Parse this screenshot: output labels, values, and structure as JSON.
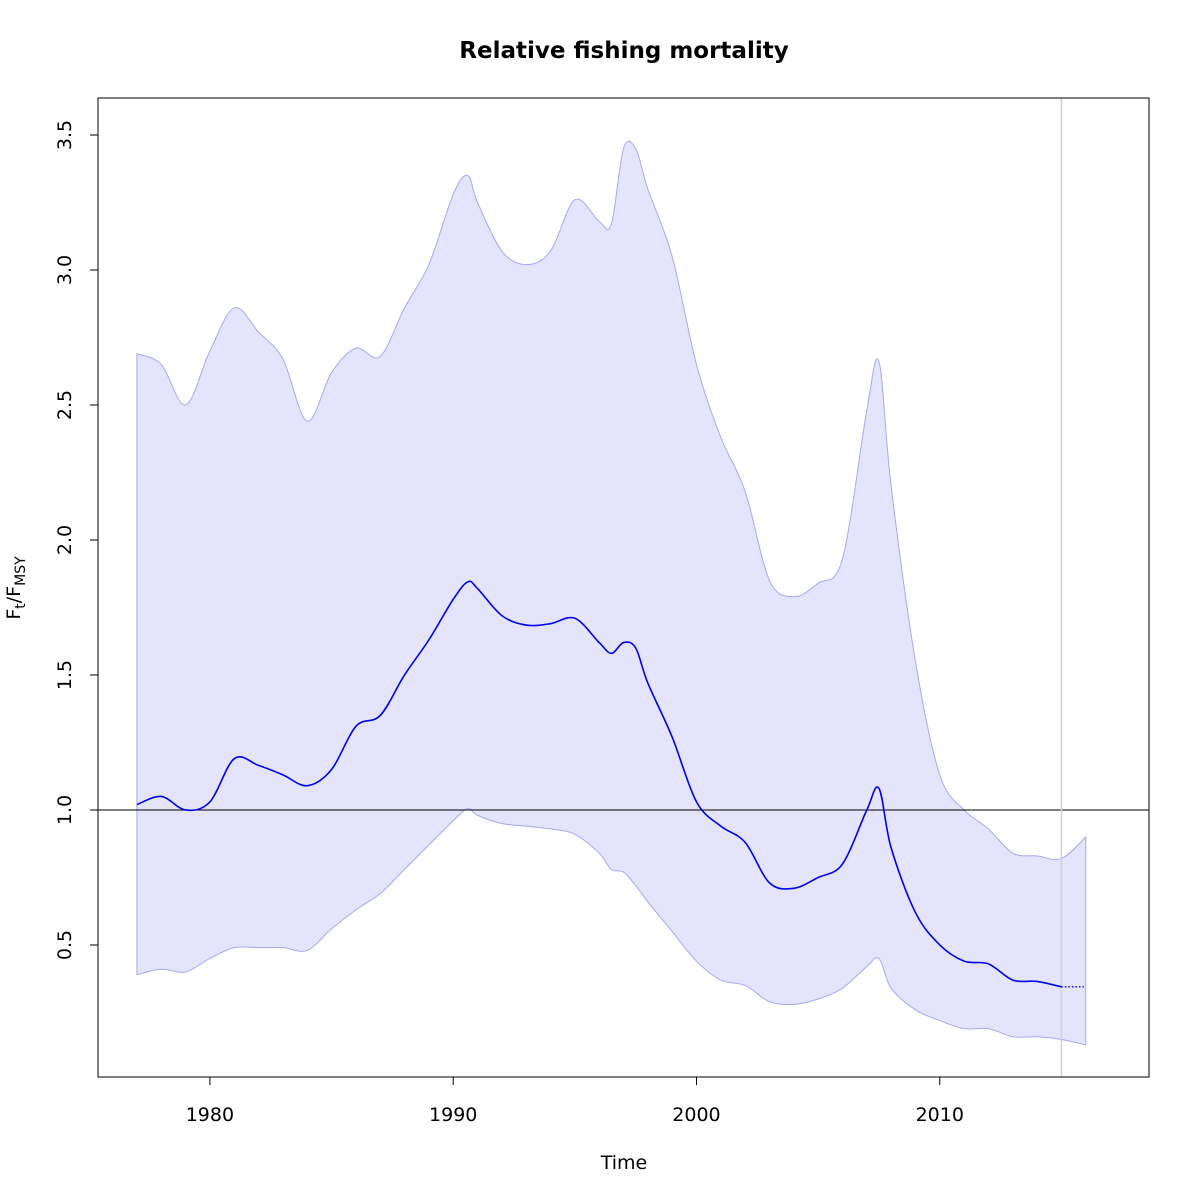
{
  "chart_data": {
    "type": "band-line",
    "title": "Relative fishing mortality",
    "xlabel": "Time",
    "ylabel": [
      "F",
      "t",
      "/F",
      "MSY"
    ],
    "x": [
      1977,
      1978,
      1979,
      1980,
      1981,
      1982,
      1983,
      1984,
      1985,
      1986,
      1987,
      1988,
      1989,
      1990,
      1990.6,
      1991,
      1992,
      1993,
      1994,
      1995,
      1996,
      1996.5,
      1997,
      1997.5,
      1998,
      1999,
      2000,
      2001,
      2002,
      2003,
      2004,
      2005,
      2006,
      2007,
      2007.5,
      2008,
      2009,
      2010,
      2011,
      2012,
      2013,
      2014,
      2015,
      2016
    ],
    "series": [
      {
        "color": "#0000ee",
        "values": [
          1.02,
          1.05,
          1.0,
          1.03,
          1.19,
          1.165,
          1.13,
          1.09,
          1.15,
          1.31,
          1.35,
          1.5,
          1.63,
          1.78,
          1.845,
          1.82,
          1.72,
          1.685,
          1.69,
          1.71,
          1.62,
          1.58,
          1.62,
          1.6,
          1.47,
          1.27,
          1.03,
          0.94,
          0.88,
          0.73,
          0.71,
          0.75,
          0.8,
          1.0,
          1.08,
          0.86,
          0.62,
          0.5,
          0.44,
          0.43,
          0.37,
          0.365,
          0.345,
          0.345
        ]
      }
    ],
    "band": {
      "color": "#e4e4fc",
      "edge": "#a8a8f0",
      "upper": [
        2.69,
        2.65,
        2.5,
        2.7,
        2.86,
        2.77,
        2.67,
        2.44,
        2.62,
        2.71,
        2.68,
        2.86,
        3.02,
        3.28,
        3.35,
        3.25,
        3.07,
        3.02,
        3.07,
        3.26,
        3.18,
        3.17,
        3.45,
        3.45,
        3.3,
        3.05,
        2.65,
        2.38,
        2.18,
        1.85,
        1.79,
        1.84,
        1.93,
        2.48,
        2.66,
        2.2,
        1.55,
        1.13,
        1.0,
        0.93,
        0.84,
        0.83,
        0.82,
        0.9
      ],
      "lower": [
        0.39,
        0.41,
        0.4,
        0.45,
        0.49,
        0.49,
        0.49,
        0.48,
        0.56,
        0.63,
        0.69,
        0.78,
        0.87,
        0.96,
        1.005,
        0.98,
        0.95,
        0.94,
        0.93,
        0.91,
        0.84,
        0.78,
        0.77,
        0.72,
        0.66,
        0.55,
        0.44,
        0.37,
        0.35,
        0.29,
        0.28,
        0.3,
        0.34,
        0.42,
        0.45,
        0.34,
        0.26,
        0.22,
        0.19,
        0.19,
        0.16,
        0.16,
        0.15,
        0.13
      ]
    },
    "hline": 1,
    "vline": 2015,
    "xlim": [
      1975.4,
      2018.6
    ],
    "ylim": [
      0.011,
      3.637
    ],
    "xticks": [
      1980,
      1990,
      2000,
      2010
    ],
    "yticks": [
      0.5,
      {
        "value": 1,
        "label": "1.0"
      },
      1.5,
      {
        "value": 2,
        "label": "2.0"
      },
      2.5,
      {
        "value": 3,
        "label": "3.0"
      },
      3.5
    ]
  }
}
